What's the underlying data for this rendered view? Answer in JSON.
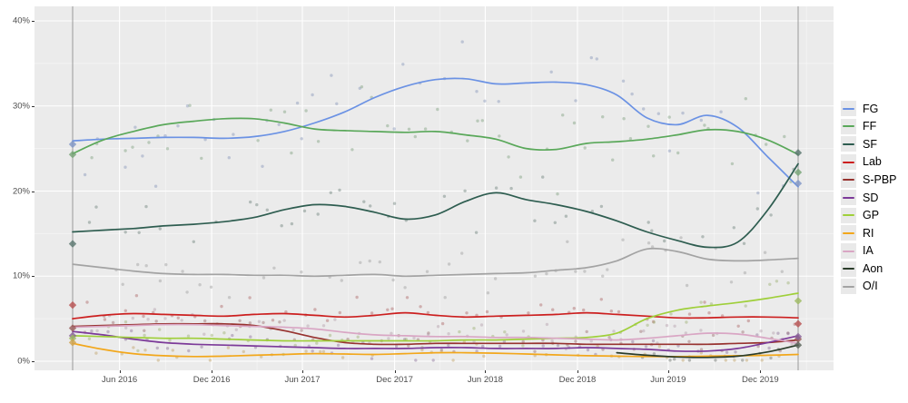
{
  "chart_data": {
    "type": "scatter",
    "title": "",
    "description": "Irish opinion polling by party, Feb 2016 - Feb 2020, poll scatter with smoothed trend lines and election-result diamonds",
    "x_unit": "months_since_feb_2016",
    "x_domain": [
      0,
      48
    ],
    "ylim": [
      0,
      41.5
    ],
    "grid": "on",
    "legend_position": "right",
    "x_axis": {
      "ticks": [
        {
          "label": "Jun 2016",
          "t": 3.1
        },
        {
          "label": "Dec 2016",
          "t": 9.2
        },
        {
          "label": "Jun 2017",
          "t": 15.2
        },
        {
          "label": "Dec 2017",
          "t": 21.3
        },
        {
          "label": "Jun 2018",
          "t": 27.3
        },
        {
          "label": "Dec 2018",
          "t": 33.4
        },
        {
          "label": "Jun 2019",
          "t": 39.4
        },
        {
          "label": "Dec 2019",
          "t": 45.5
        }
      ]
    },
    "y_axis": {
      "ticks": [
        {
          "label": "0%",
          "v": 0
        },
        {
          "label": "10%",
          "v": 10
        },
        {
          "label": "20%",
          "v": 20
        },
        {
          "label": "30%",
          "v": 30
        },
        {
          "label": "40%",
          "v": 40
        }
      ]
    },
    "reference_lines_t": [
      0,
      48
    ],
    "series_step_months": 2,
    "series": [
      {
        "name": "FG",
        "color": "#6b92e4",
        "start_t": 0,
        "values": [
          25.9,
          26.1,
          26.2,
          26.3,
          26.3,
          26.2,
          26.4,
          27.0,
          28.0,
          29.3,
          31.0,
          32.3,
          33.1,
          33.2,
          32.6,
          32.7,
          32.8,
          32.5,
          31.3,
          28.6,
          27.8,
          28.9,
          27.5,
          24.0,
          20.5
        ],
        "election_2016": 25.5,
        "election_2020": 20.9
      },
      {
        "name": "FF",
        "color": "#5aa85a",
        "start_t": 0,
        "values": [
          24.4,
          26.0,
          27.0,
          27.8,
          28.2,
          28.5,
          28.5,
          28.0,
          27.3,
          27.1,
          27.0,
          26.9,
          27.0,
          26.6,
          26.1,
          25.0,
          24.9,
          25.6,
          25.8,
          26.1,
          26.6,
          27.2,
          27.0,
          26.0,
          24.3
        ],
        "election_2016": 24.3,
        "election_2020": 22.2
      },
      {
        "name": "SF",
        "color": "#2e5d50",
        "start_t": 0,
        "values": [
          15.2,
          15.4,
          15.6,
          15.9,
          16.1,
          16.4,
          16.9,
          17.8,
          18.4,
          18.2,
          17.5,
          16.7,
          17.2,
          18.8,
          19.8,
          19.0,
          18.4,
          17.6,
          16.5,
          15.2,
          14.2,
          13.4,
          14.0,
          17.8,
          23.2
        ],
        "election_2016": 13.8,
        "election_2020": 24.5
      },
      {
        "name": "Lab",
        "color": "#cc1f1f",
        "start_t": 0,
        "values": [
          5.0,
          5.4,
          5.6,
          5.5,
          5.4,
          5.3,
          5.5,
          5.6,
          5.4,
          5.2,
          5.4,
          5.7,
          5.4,
          5.2,
          5.3,
          5.4,
          5.5,
          5.7,
          5.5,
          5.3,
          5.1,
          5.1,
          5.2,
          5.2,
          5.1
        ],
        "election_2016": 6.6,
        "election_2020": 4.4
      },
      {
        "name": "S-PBP",
        "color": "#97322f",
        "start_t": 0,
        "values": [
          4.1,
          4.2,
          4.3,
          4.4,
          4.4,
          4.4,
          4.2,
          3.6,
          2.8,
          2.2,
          2.0,
          2.0,
          2.1,
          2.1,
          2.1,
          2.1,
          2.1,
          2.0,
          2.0,
          2.0,
          2.0,
          2.0,
          2.1,
          2.2,
          2.5
        ],
        "election_2016": 3.9,
        "election_2020": 2.6
      },
      {
        "name": "SD",
        "color": "#7c3a99",
        "start_t": 0,
        "values": [
          3.5,
          3.1,
          2.6,
          2.2,
          2.0,
          1.9,
          1.8,
          1.7,
          1.6,
          1.5,
          1.5,
          1.5,
          1.6,
          1.6,
          1.5,
          1.5,
          1.5,
          1.6,
          1.5,
          1.4,
          1.2,
          1.2,
          1.5,
          2.2,
          3.0
        ],
        "election_2016": 3.0,
        "election_2020": 2.9
      },
      {
        "name": "GP",
        "color": "#9fcf3a",
        "start_t": 0,
        "values": [
          3.0,
          2.9,
          2.8,
          2.7,
          2.7,
          2.6,
          2.5,
          2.4,
          2.4,
          2.4,
          2.4,
          2.4,
          2.4,
          2.5,
          2.5,
          2.6,
          2.7,
          2.8,
          3.3,
          5.0,
          6.0,
          6.5,
          6.9,
          7.4,
          8.0
        ],
        "election_2016": 2.7,
        "election_2020": 7.1
      },
      {
        "name": "RI",
        "color": "#f2a71b",
        "start_t": 0,
        "values": [
          2.1,
          1.4,
          0.9,
          0.65,
          0.55,
          0.6,
          0.7,
          0.8,
          0.9,
          0.85,
          0.8,
          0.9,
          1.0,
          1.0,
          0.95,
          0.85,
          0.75,
          0.65,
          0.6,
          0.55,
          0.55,
          0.6,
          0.65,
          0.7,
          0.8
        ],
        "election_2016": 2.2,
        "election_2020": null
      },
      {
        "name": "IA",
        "color": "#d9a6c4",
        "start_t": 0,
        "values": [
          4.0,
          4.1,
          4.2,
          4.3,
          4.3,
          4.2,
          4.1,
          4.0,
          3.8,
          3.4,
          3.1,
          3.0,
          2.9,
          2.9,
          2.8,
          2.8,
          2.7,
          2.6,
          2.5,
          2.7,
          3.0,
          3.3,
          3.2,
          2.7,
          2.1
        ],
        "election_2016": null,
        "election_2020": null
      },
      {
        "name": "Aon",
        "color": "#2b3d2b",
        "start_t": 36,
        "values": [
          1.0,
          0.7,
          0.5,
          0.45,
          0.6,
          1.1,
          1.9
        ],
        "election_2016": null,
        "election_2020": 1.9
      },
      {
        "name": "O/I",
        "color": "#a3a3a3",
        "start_t": 0,
        "values": [
          11.4,
          11.0,
          10.6,
          10.3,
          10.2,
          10.2,
          10.1,
          10.1,
          10.0,
          10.1,
          10.2,
          10.0,
          10.1,
          10.2,
          10.3,
          10.4,
          10.7,
          11.0,
          11.8,
          13.2,
          12.9,
          12.0,
          11.8,
          11.9,
          12.1
        ],
        "election_2016": null,
        "election_2020": null
      }
    ],
    "scatter": {
      "step": 0.75,
      "keep": 0.72,
      "radius": 1.7,
      "alpha": 0.42
    }
  },
  "style": {
    "panel_bg": "#ebebeb",
    "grid_major": "#ffffff",
    "grid_minor": "#f5f5f5",
    "axis_text": "#4d4d4d",
    "ref_line": "#9a9a9a",
    "legend_key_bg": "#e9e9e9"
  }
}
